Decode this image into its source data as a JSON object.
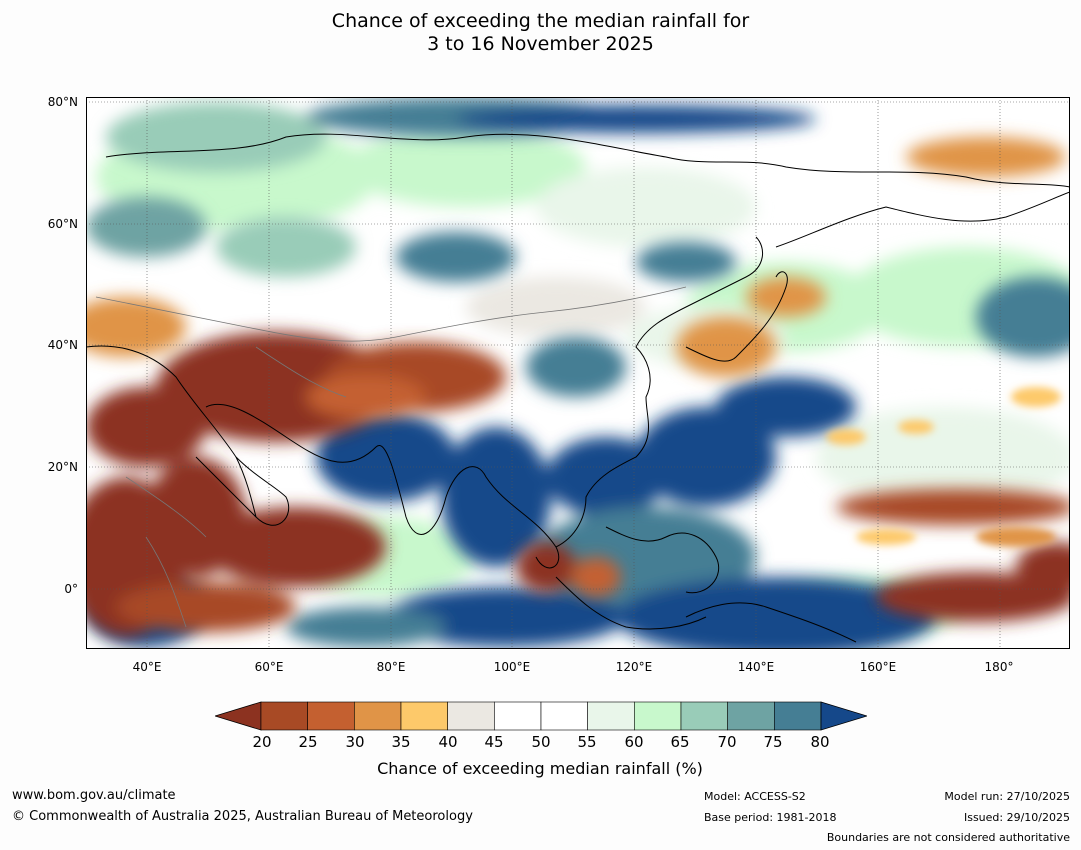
{
  "title": {
    "line1": "Chance of exceeding the median rainfall for",
    "line2": "3 to 16 November 2025"
  },
  "axes": {
    "lat_labels": [
      "80°N",
      "60°N",
      "40°N",
      "20°N",
      "0°"
    ],
    "lon_labels": [
      "40°E",
      "60°E",
      "80°E",
      "100°E",
      "120°E",
      "140°E",
      "160°E",
      "180°"
    ]
  },
  "colorbar": {
    "ticks": [
      "20",
      "25",
      "30",
      "35",
      "40",
      "45",
      "50",
      "55",
      "60",
      "65",
      "70",
      "75",
      "80"
    ],
    "colors": [
      "#8c3220",
      "#a84a25",
      "#c46030",
      "#e09447",
      "#fdc96a",
      "#ebe8e2",
      "#ffffff",
      "#ffffff",
      "#e9f6ea",
      "#c8f8cc",
      "#99ccb8",
      "#6ea3a3",
      "#457e94",
      "#15488a"
    ],
    "label": "Chance of exceeding median rainfall (%)"
  },
  "footer": {
    "website": "www.bom.gov.au/climate",
    "copyright": "© Commonwealth of Australia 2025, Australian Bureau of Meteorology",
    "model": "Model: ACCESS-S2",
    "base_period": "Base period: 1981-2018",
    "model_run": "Model run: 27/10/2025",
    "issued": "Issued: 29/10/2025",
    "disclaimer": "Boundaries are not considered authoritative"
  }
}
